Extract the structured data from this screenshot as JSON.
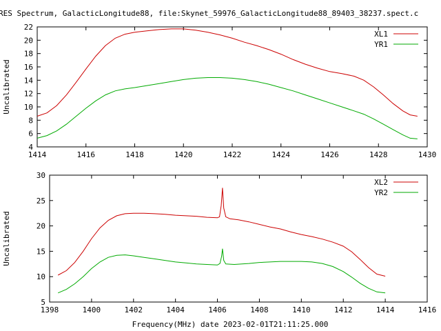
{
  "title": "RES Spectrum, GalacticLongitude88, file:Skynet_59976_GalacticLongitude88_89403_38237.spect.c",
  "xlabel": "Frequency(MHz) date 2023-02-01T21:11:25.000",
  "chart_data": [
    {
      "type": "line",
      "ylabel": "Uncalibrated",
      "xlim": [
        1414,
        1430
      ],
      "ylim": [
        4,
        22
      ],
      "xticks": [
        1414,
        1416,
        1418,
        1420,
        1422,
        1424,
        1426,
        1428,
        1430
      ],
      "yticks": [
        4,
        6,
        8,
        10,
        12,
        14,
        16,
        18,
        20,
        22
      ],
      "grid": false,
      "legend": "top-right",
      "series": [
        {
          "name": "XL1",
          "color": "#cc0000",
          "points": [
            [
              1414.0,
              8.6
            ],
            [
              1414.4,
              9.1
            ],
            [
              1414.8,
              10.2
            ],
            [
              1415.2,
              11.8
            ],
            [
              1415.6,
              13.7
            ],
            [
              1416.0,
              15.7
            ],
            [
              1416.4,
              17.6
            ],
            [
              1416.8,
              19.2
            ],
            [
              1417.2,
              20.3
            ],
            [
              1417.6,
              20.9
            ],
            [
              1418.0,
              21.2
            ],
            [
              1418.5,
              21.4
            ],
            [
              1419.0,
              21.6
            ],
            [
              1419.5,
              21.7
            ],
            [
              1420.0,
              21.7
            ],
            [
              1420.5,
              21.5
            ],
            [
              1421.0,
              21.2
            ],
            [
              1421.5,
              20.8
            ],
            [
              1422.0,
              20.3
            ],
            [
              1422.5,
              19.7
            ],
            [
              1423.0,
              19.2
            ],
            [
              1423.5,
              18.6
            ],
            [
              1424.0,
              17.9
            ],
            [
              1424.5,
              17.1
            ],
            [
              1425.0,
              16.4
            ],
            [
              1425.5,
              15.8
            ],
            [
              1426.0,
              15.3
            ],
            [
              1426.5,
              15.0
            ],
            [
              1427.0,
              14.6
            ],
            [
              1427.4,
              14.0
            ],
            [
              1427.8,
              13.0
            ],
            [
              1428.2,
              11.8
            ],
            [
              1428.6,
              10.5
            ],
            [
              1429.0,
              9.4
            ],
            [
              1429.3,
              8.8
            ],
            [
              1429.6,
              8.6
            ]
          ]
        },
        {
          "name": "YR1",
          "color": "#00aa00",
          "points": [
            [
              1414.0,
              5.3
            ],
            [
              1414.4,
              5.7
            ],
            [
              1414.8,
              6.4
            ],
            [
              1415.2,
              7.4
            ],
            [
              1415.6,
              8.6
            ],
            [
              1416.0,
              9.8
            ],
            [
              1416.4,
              10.9
            ],
            [
              1416.8,
              11.8
            ],
            [
              1417.2,
              12.4
            ],
            [
              1417.6,
              12.7
            ],
            [
              1418.0,
              12.9
            ],
            [
              1418.5,
              13.2
            ],
            [
              1419.0,
              13.5
            ],
            [
              1419.5,
              13.8
            ],
            [
              1420.0,
              14.1
            ],
            [
              1420.5,
              14.3
            ],
            [
              1421.0,
              14.4
            ],
            [
              1421.5,
              14.4
            ],
            [
              1422.0,
              14.3
            ],
            [
              1422.5,
              14.1
            ],
            [
              1423.0,
              13.8
            ],
            [
              1423.5,
              13.4
            ],
            [
              1424.0,
              12.9
            ],
            [
              1424.5,
              12.4
            ],
            [
              1425.0,
              11.8
            ],
            [
              1425.5,
              11.2
            ],
            [
              1426.0,
              10.6
            ],
            [
              1426.5,
              10.0
            ],
            [
              1427.0,
              9.4
            ],
            [
              1427.4,
              8.9
            ],
            [
              1427.8,
              8.2
            ],
            [
              1428.2,
              7.4
            ],
            [
              1428.6,
              6.6
            ],
            [
              1429.0,
              5.8
            ],
            [
              1429.3,
              5.3
            ],
            [
              1429.6,
              5.2
            ]
          ]
        }
      ]
    },
    {
      "type": "line",
      "ylabel": "Uncalibrated",
      "xlim": [
        1398,
        1416
      ],
      "ylim": [
        5,
        30
      ],
      "xticks": [
        1398,
        1400,
        1402,
        1404,
        1406,
        1408,
        1410,
        1412,
        1414,
        1416
      ],
      "yticks": [
        5,
        10,
        15,
        20,
        25,
        30
      ],
      "grid": false,
      "legend": "top-right",
      "series": [
        {
          "name": "XL2",
          "color": "#cc0000",
          "points": [
            [
              1398.4,
              10.3
            ],
            [
              1398.8,
              11.2
            ],
            [
              1399.2,
              12.8
            ],
            [
              1399.6,
              15.0
            ],
            [
              1400.0,
              17.5
            ],
            [
              1400.4,
              19.6
            ],
            [
              1400.8,
              21.1
            ],
            [
              1401.2,
              22.0
            ],
            [
              1401.6,
              22.4
            ],
            [
              1402.0,
              22.5
            ],
            [
              1402.5,
              22.5
            ],
            [
              1403.0,
              22.4
            ],
            [
              1403.5,
              22.3
            ],
            [
              1404.0,
              22.1
            ],
            [
              1404.5,
              22.0
            ],
            [
              1405.0,
              21.9
            ],
            [
              1405.5,
              21.7
            ],
            [
              1406.0,
              21.6
            ],
            [
              1406.1,
              21.8
            ],
            [
              1406.18,
              24.0
            ],
            [
              1406.24,
              27.5
            ],
            [
              1406.3,
              23.5
            ],
            [
              1406.4,
              21.8
            ],
            [
              1406.6,
              21.4
            ],
            [
              1407.0,
              21.2
            ],
            [
              1407.5,
              20.8
            ],
            [
              1408.0,
              20.3
            ],
            [
              1408.5,
              19.8
            ],
            [
              1409.0,
              19.4
            ],
            [
              1409.5,
              18.8
            ],
            [
              1410.0,
              18.3
            ],
            [
              1410.5,
              17.9
            ],
            [
              1411.0,
              17.4
            ],
            [
              1411.5,
              16.8
            ],
            [
              1412.0,
              16.0
            ],
            [
              1412.4,
              14.9
            ],
            [
              1412.8,
              13.4
            ],
            [
              1413.2,
              11.8
            ],
            [
              1413.6,
              10.5
            ],
            [
              1414.0,
              10.1
            ]
          ]
        },
        {
          "name": "YR2",
          "color": "#00aa00",
          "points": [
            [
              1398.4,
              6.8
            ],
            [
              1398.8,
              7.5
            ],
            [
              1399.2,
              8.6
            ],
            [
              1399.6,
              10.0
            ],
            [
              1400.0,
              11.6
            ],
            [
              1400.4,
              12.9
            ],
            [
              1400.8,
              13.8
            ],
            [
              1401.2,
              14.2
            ],
            [
              1401.6,
              14.3
            ],
            [
              1402.0,
              14.1
            ],
            [
              1402.5,
              13.8
            ],
            [
              1403.0,
              13.5
            ],
            [
              1403.5,
              13.2
            ],
            [
              1404.0,
              12.9
            ],
            [
              1404.5,
              12.7
            ],
            [
              1405.0,
              12.5
            ],
            [
              1405.5,
              12.4
            ],
            [
              1406.0,
              12.3
            ],
            [
              1406.12,
              12.6
            ],
            [
              1406.2,
              14.0
            ],
            [
              1406.24,
              15.5
            ],
            [
              1406.3,
              13.2
            ],
            [
              1406.4,
              12.5
            ],
            [
              1406.8,
              12.4
            ],
            [
              1407.5,
              12.6
            ],
            [
              1408.0,
              12.8
            ],
            [
              1408.5,
              12.9
            ],
            [
              1409.0,
              13.0
            ],
            [
              1409.5,
              13.0
            ],
            [
              1410.0,
              13.0
            ],
            [
              1410.5,
              12.9
            ],
            [
              1411.0,
              12.6
            ],
            [
              1411.5,
              12.0
            ],
            [
              1412.0,
              11.0
            ],
            [
              1412.4,
              9.9
            ],
            [
              1412.8,
              8.7
            ],
            [
              1413.2,
              7.7
            ],
            [
              1413.6,
              7.0
            ],
            [
              1414.0,
              6.8
            ]
          ]
        }
      ]
    }
  ]
}
